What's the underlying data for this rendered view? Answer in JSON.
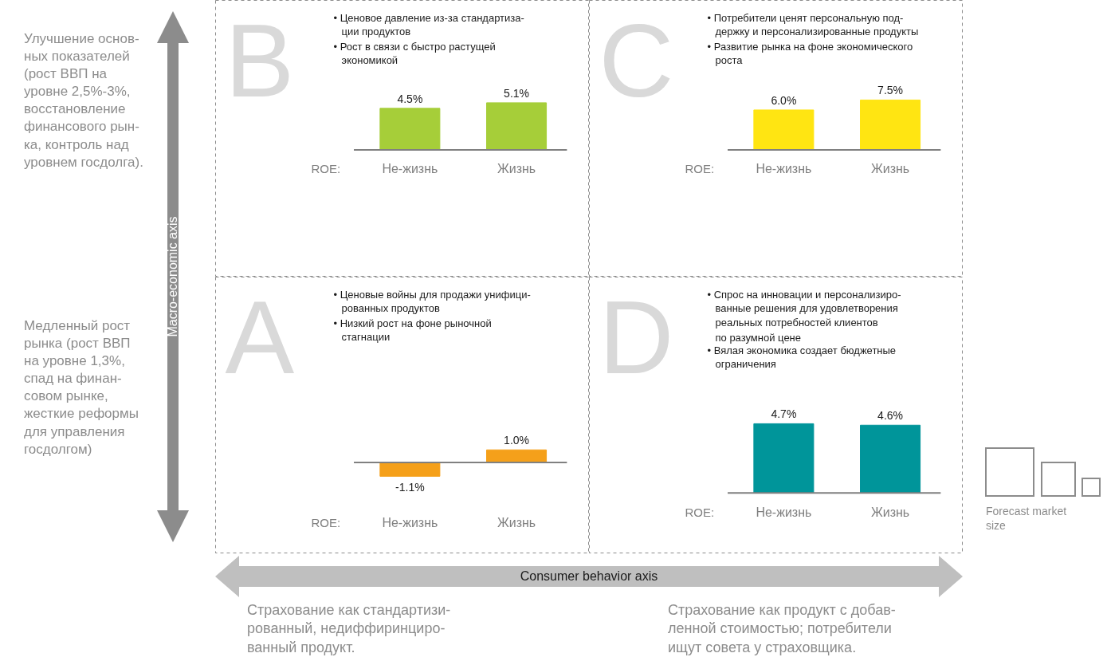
{
  "chart_data": [
    {
      "type": "bar",
      "title": "B",
      "annotations": [
        "• Ценовое давление из-за стандартиза-\nции продуктов",
        "• Рост в связи с быстро растущей\nэкономикой"
      ],
      "xlabel": "ROE:",
      "categories": [
        "Не-жизнь",
        "Жизнь"
      ],
      "values": [
        4.5,
        5.1
      ],
      "value_labels": [
        "4.5%",
        "5.1%"
      ],
      "color": "#a6ce39"
    },
    {
      "type": "bar",
      "title": "C",
      "annotations": [
        "• Потребители ценят персональную под-\nдержку и персонализированные продукты",
        "• Развитие рынка на фоне экономического\nроста"
      ],
      "xlabel": "ROE:",
      "categories": [
        "Не-жизнь",
        "Жизнь"
      ],
      "values": [
        6.0,
        7.5
      ],
      "value_labels": [
        "6.0%",
        "7.5%"
      ],
      "color": "#ffe512"
    },
    {
      "type": "bar",
      "title": "A",
      "annotations": [
        "• Ценовые войны для продажи унифици-\nрованных продуктов",
        "• Низкий рост на фоне рыночной\nстагнации"
      ],
      "xlabel": "ROE:",
      "categories": [
        "Не-жизнь",
        "Жизнь"
      ],
      "values": [
        -1.1,
        1.0
      ],
      "value_labels": [
        "-1.1%",
        "1.0%"
      ],
      "color": "#f5a01a"
    },
    {
      "type": "bar",
      "title": "D",
      "annotations": [
        "• Спрос на инновации и персонализиро-\nванные решения для удовлетворения\nреальных потребностей клиентов\nпо разумной цене",
        "• Вялая экономика создает бюджетные\nограничения"
      ],
      "xlabel": "ROE:",
      "categories": [
        "Не-жизнь",
        "Жизнь"
      ],
      "values": [
        4.7,
        4.6
      ],
      "value_labels": [
        "4.7%",
        "4.6%"
      ],
      "color": "#00959a"
    },
    {
      "type": "other",
      "annotations": [
        "Улучшение основ-\nных показателей\n(рост ВВП на\nуровне 2,5%-3%,\nвосстановление\nфинансового рын-\nка, контроль над\nуровнем госдолга).",
        "Медленный рост\nрынка (рост ВВП\nна уровне 1,3%,\nспад на финан-\nсовом рынке,\nжесткие реформы\nдля управления\nгосдолгом)",
        "Macro-economic axis",
        "Consumer behavior axis",
        "Страхование как стандартизи-\nрованный, недиффиринциро-\nванный продукт.",
        "Страхование как продукт с добав-\nленной стоимостью; потребители\nищут совета у страховщика.",
        "Forecast market\nsize"
      ]
    }
  ]
}
